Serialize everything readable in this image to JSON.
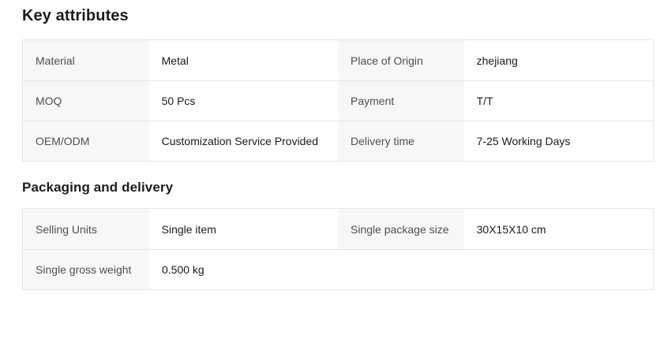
{
  "key_attributes": {
    "title": "Key attributes",
    "rows": [
      {
        "c0_label": "Material",
        "c0_value": "Metal",
        "c1_label": "Place of Origin",
        "c1_value": "zhejiang"
      },
      {
        "c0_label": "MOQ",
        "c0_value": "50 Pcs",
        "c1_label": "Payment",
        "c1_value": "T/T"
      },
      {
        "c0_label": "OEM/ODM",
        "c0_value": "Customization Service Provided",
        "c1_label": "Delivery time",
        "c1_value": "7-25 Working Days"
      }
    ]
  },
  "packaging_delivery": {
    "title": "Packaging and delivery",
    "rows": [
      {
        "c0_label": "Selling Units",
        "c0_value": "Single item",
        "c1_label": "Single package size",
        "c1_value": "30X15X10 cm"
      },
      {
        "c0_label": "Single gross weight",
        "c0_value": "0.500 kg"
      }
    ]
  },
  "colors": {
    "label_cell_background": "#f7f7f7",
    "table_border": "#e6e6e6",
    "heading_text": "#1b1d1f",
    "label_text": "#4f4f4f",
    "value_text": "#1a1a1a"
  }
}
